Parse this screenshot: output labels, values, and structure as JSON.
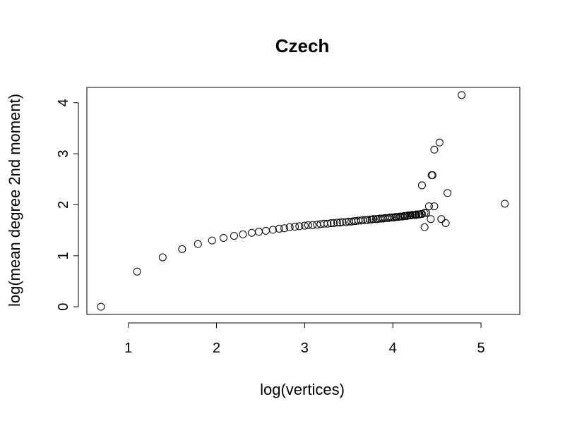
{
  "chart_data": {
    "type": "scatter",
    "title": "Czech",
    "xlabel": "log(vertices)",
    "ylabel": "log(mean degree 2nd moment)",
    "xlim": [
      0.53,
      5.44
    ],
    "ylim": [
      -0.15,
      4.3
    ],
    "xticks": [
      1,
      2,
      3,
      4,
      5
    ],
    "yticks": [
      0,
      1,
      2,
      3,
      4
    ],
    "grid": false,
    "legend": "none",
    "marker": "open-circle",
    "x": [
      0.69,
      1.1,
      1.39,
      1.61,
      1.79,
      1.95,
      2.08,
      2.2,
      2.3,
      2.4,
      2.48,
      2.56,
      2.64,
      2.71,
      2.77,
      2.83,
      2.89,
      2.94,
      3.0,
      3.04,
      3.09,
      3.14,
      3.18,
      3.22,
      3.26,
      3.3,
      3.33,
      3.37,
      3.4,
      3.43,
      3.47,
      3.5,
      3.53,
      3.56,
      3.58,
      3.61,
      3.64,
      3.66,
      3.69,
      3.71,
      3.74,
      3.76,
      3.78,
      3.81,
      3.83,
      3.85,
      3.87,
      3.89,
      3.91,
      3.93,
      3.95,
      3.97,
      3.99,
      4.01,
      4.03,
      4.04,
      4.06,
      4.08,
      4.09,
      4.11,
      4.13,
      4.14,
      4.16,
      4.17,
      4.19,
      4.2,
      4.22,
      4.23,
      4.25,
      4.26,
      4.27,
      4.29,
      4.3,
      4.32,
      4.33,
      4.36,
      4.38,
      4.41,
      4.43,
      4.45,
      4.47,
      4.33,
      4.36,
      4.44,
      4.47,
      4.53,
      4.55,
      4.6,
      4.62,
      4.78,
      5.27
    ],
    "y": [
      0.0,
      0.69,
      0.97,
      1.13,
      1.23,
      1.3,
      1.35,
      1.39,
      1.42,
      1.45,
      1.47,
      1.49,
      1.51,
      1.53,
      1.54,
      1.56,
      1.57,
      1.58,
      1.59,
      1.6,
      1.6,
      1.61,
      1.62,
      1.63,
      1.63,
      1.64,
      1.64,
      1.65,
      1.65,
      1.66,
      1.66,
      1.67,
      1.67,
      1.68,
      1.68,
      1.69,
      1.69,
      1.7,
      1.7,
      1.7,
      1.71,
      1.71,
      1.72,
      1.72,
      1.72,
      1.73,
      1.73,
      1.73,
      1.74,
      1.74,
      1.74,
      1.75,
      1.75,
      1.75,
      1.76,
      1.76,
      1.76,
      1.77,
      1.77,
      1.77,
      1.78,
      1.78,
      1.78,
      1.79,
      1.79,
      1.79,
      1.8,
      1.8,
      1.8,
      1.8,
      1.81,
      1.81,
      1.81,
      1.82,
      1.82,
      1.56,
      1.84,
      1.97,
      1.72,
      2.58,
      1.97,
      2.38,
      1.84,
      2.58,
      3.08,
      3.22,
      1.72,
      1.64,
      2.23,
      4.15,
      2.02
    ]
  }
}
